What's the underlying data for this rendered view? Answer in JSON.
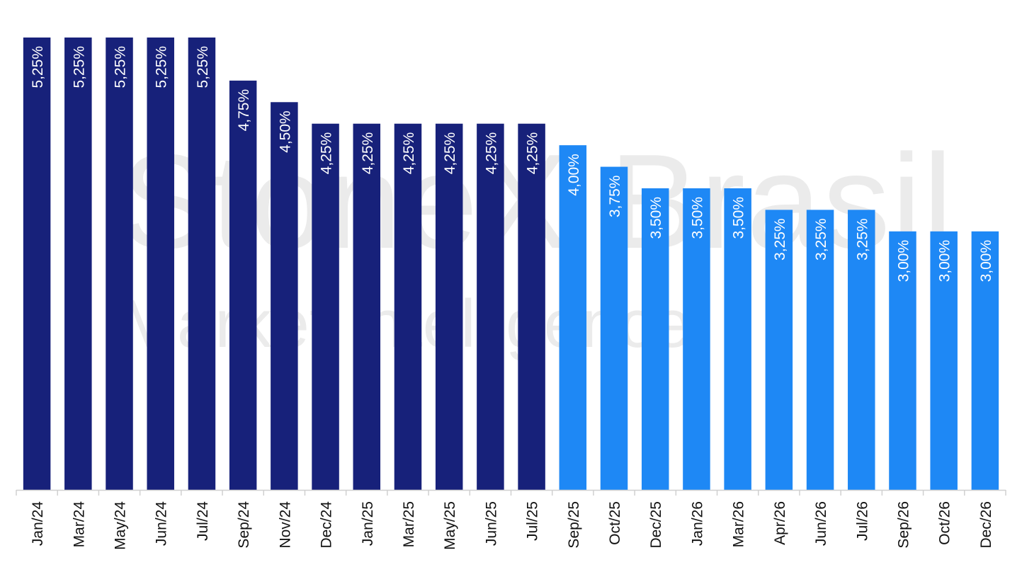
{
  "watermark": {
    "line1": "StoneX Brasil",
    "line2": "Market Intelligence"
  },
  "colors": {
    "historical": "#17217a",
    "forecast": "#1e88f5",
    "axis": "#d0d0d0",
    "label": "#ffffff",
    "tick": "#111111"
  },
  "chart_data": {
    "type": "bar",
    "title": "",
    "xlabel": "",
    "ylabel": "",
    "ylim": [
      0,
      5.25
    ],
    "grid": false,
    "legend": "none",
    "categories": [
      "Jan/24",
      "Mar/24",
      "May/24",
      "Jun/24",
      "Jul/24",
      "Sep/24",
      "Nov/24",
      "Dec/24",
      "Jan/25",
      "Mar/25",
      "May/25",
      "Jun/25",
      "Jul/25",
      "Sep/25",
      "Oct/25",
      "Dec/25",
      "Jan/26",
      "Mar/26",
      "Apr/26",
      "Jun/26",
      "Jul/26",
      "Sep/26",
      "Oct/26",
      "Dec/26"
    ],
    "values": [
      5.25,
      5.25,
      5.25,
      5.25,
      5.25,
      4.75,
      4.5,
      4.25,
      4.25,
      4.25,
      4.25,
      4.25,
      4.25,
      4.0,
      3.75,
      3.5,
      3.5,
      3.5,
      3.25,
      3.25,
      3.25,
      3.0,
      3.0,
      3.0
    ],
    "data_labels": [
      "5,25%",
      "5,25%",
      "5,25%",
      "5,25%",
      "5,25%",
      "4,75%",
      "4,50%",
      "4,25%",
      "4,25%",
      "4,25%",
      "4,25%",
      "4,25%",
      "4,25%",
      "4,00%",
      "3,75%",
      "3,50%",
      "3,50%",
      "3,50%",
      "3,25%",
      "3,25%",
      "3,25%",
      "3,00%",
      "3,00%",
      "3,00%"
    ],
    "forecast_start_index": 13
  }
}
